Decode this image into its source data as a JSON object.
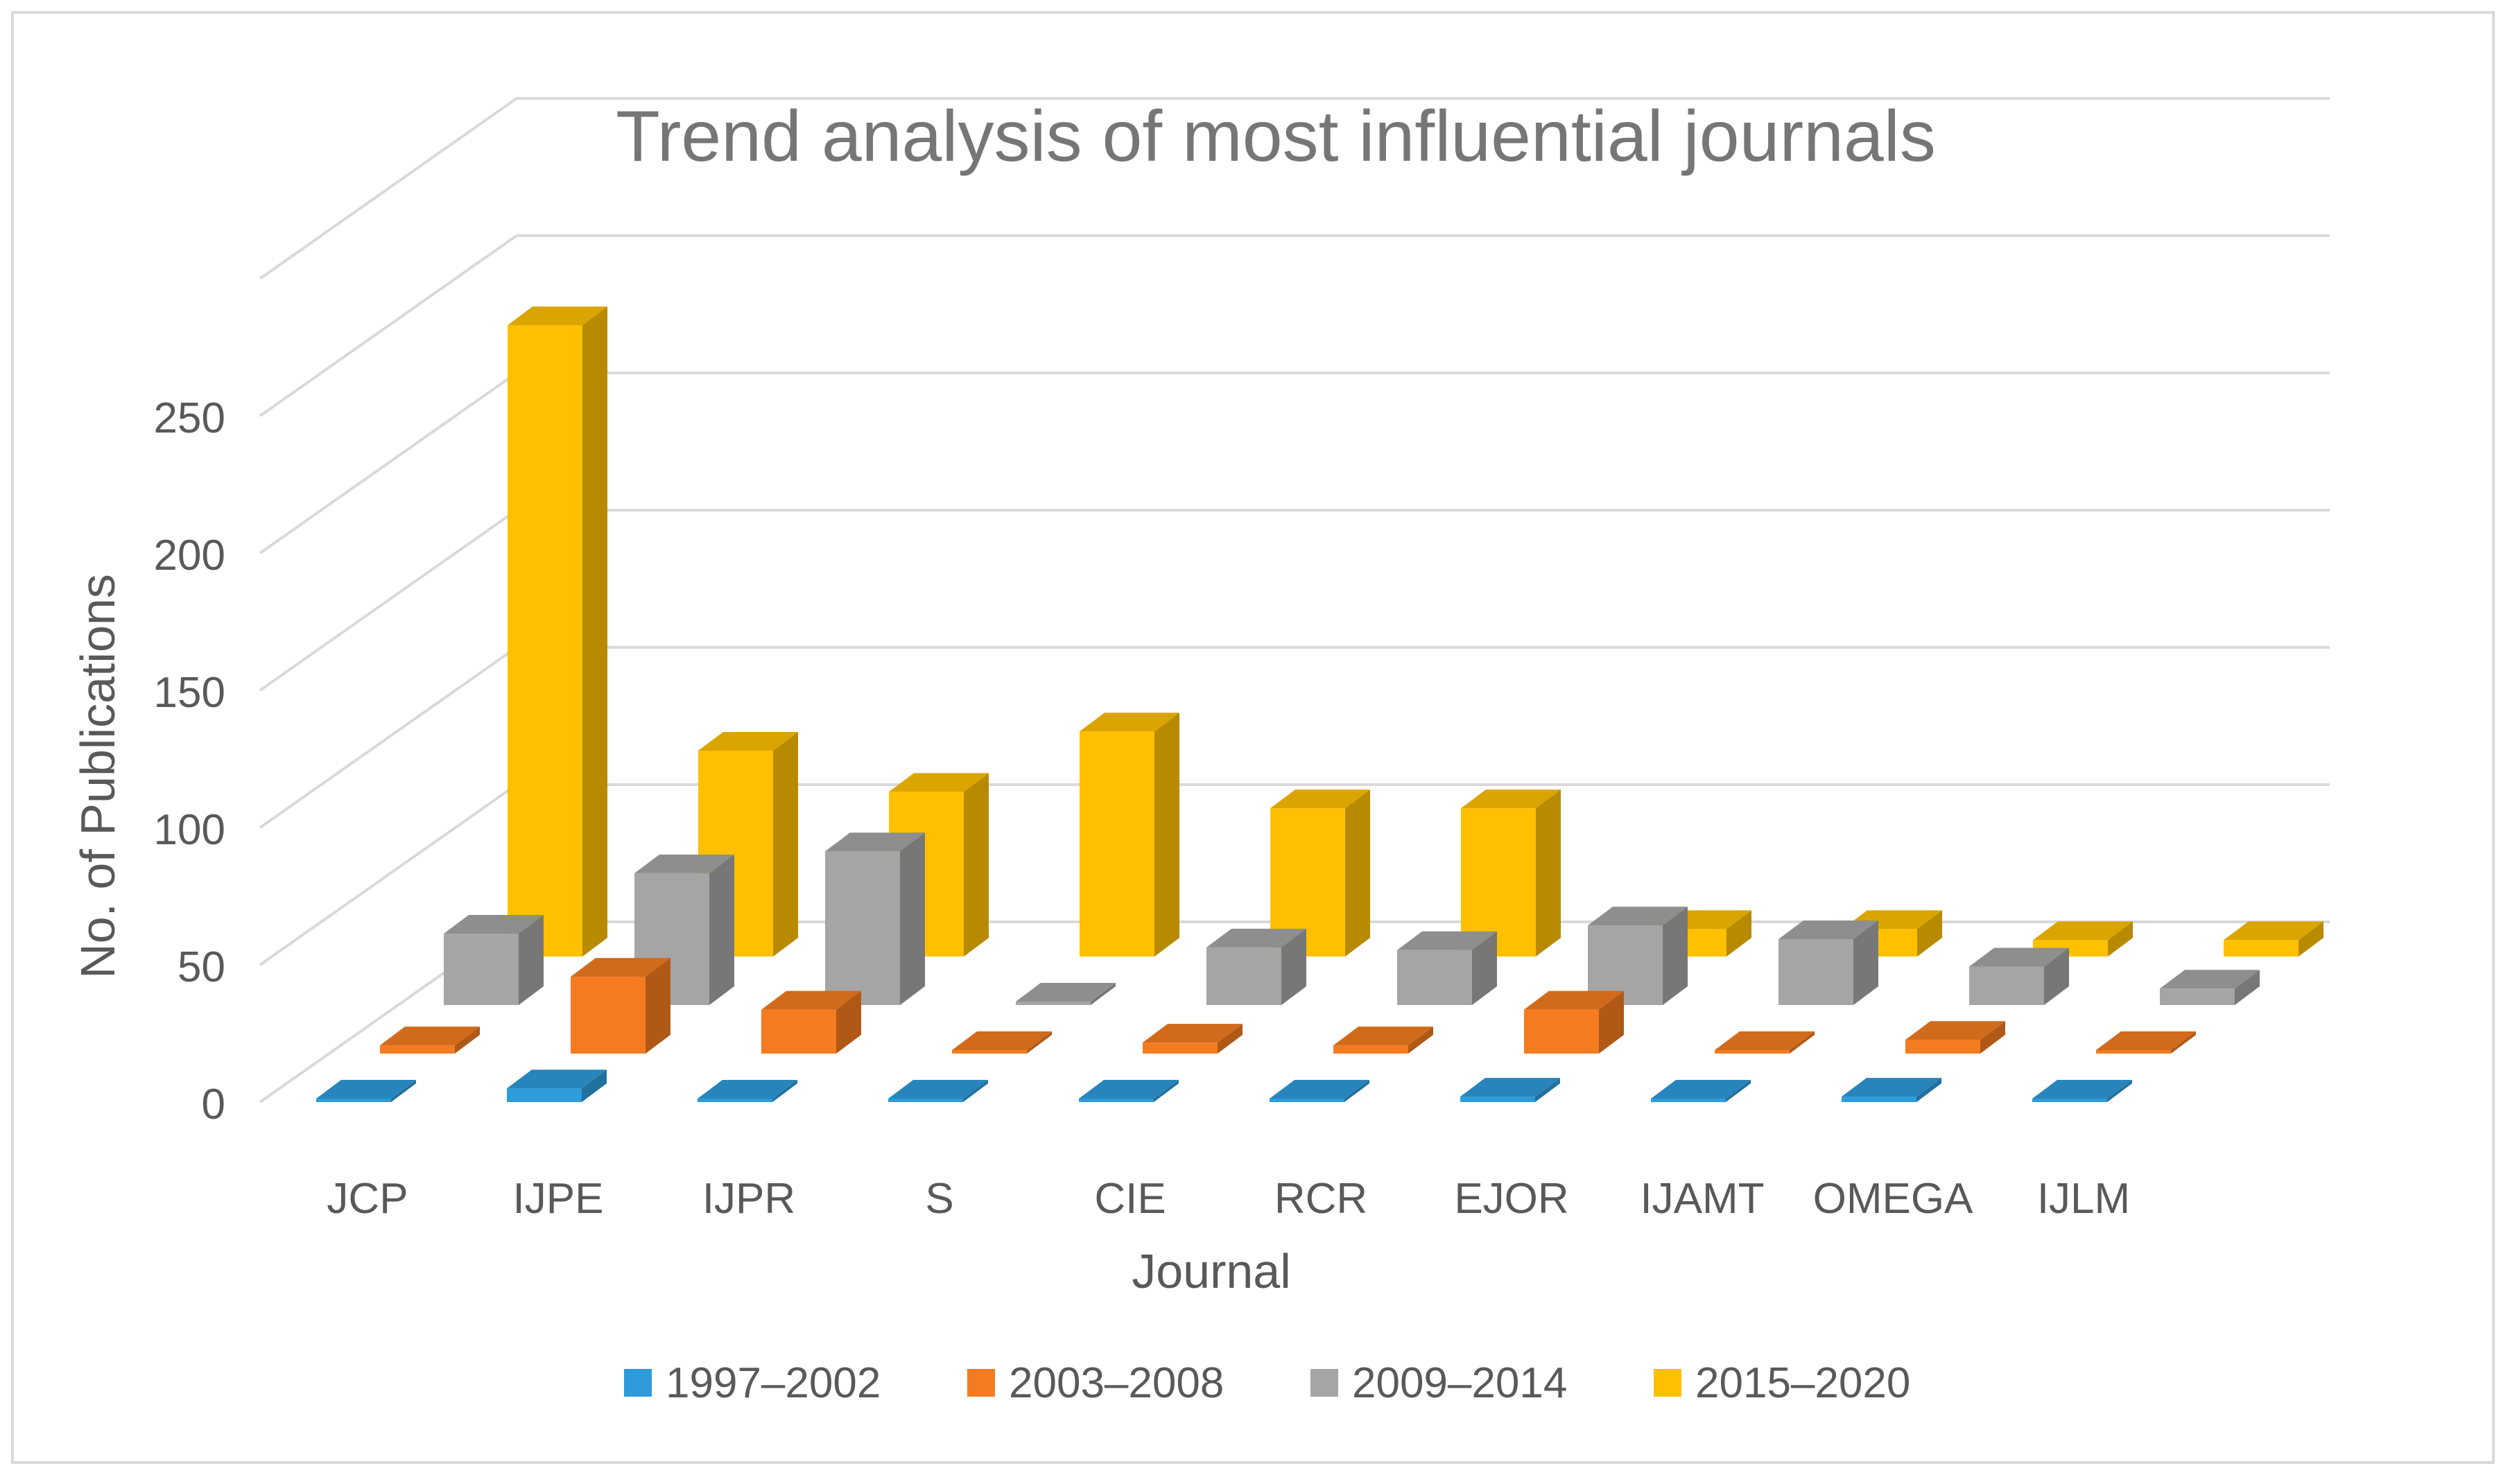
{
  "chart_data": {
    "type": "bar",
    "subtype": "3d-clustered-depth",
    "title": "Trend analysis of most influential journals",
    "xlabel": "Journal",
    "ylabel": "No. of Publications",
    "ylim": [
      0,
      300
    ],
    "yticks": [
      "0",
      "50",
      "100",
      "150",
      "200",
      "250"
    ],
    "ytick_values": [
      0,
      50,
      100,
      150,
      200,
      250
    ],
    "grid": true,
    "legend_position": "bottom",
    "categories": [
      "JCP",
      "IJPE",
      "IJPR",
      "S",
      "CIE",
      "RCR",
      "EJOR",
      "IJAMT",
      "OMEGA",
      "IJLM"
    ],
    "series": [
      {
        "name": "1997–2002",
        "color": "#2e9bdb",
        "values": [
          0,
          5,
          1,
          0,
          1,
          1,
          2,
          0,
          2,
          0
        ]
      },
      {
        "name": "2003–2008",
        "color": "#f47b20",
        "values": [
          3,
          28,
          16,
          1,
          4,
          3,
          16,
          1,
          5,
          0
        ]
      },
      {
        "name": "2009–2014",
        "color": "#a5a5a5",
        "values": [
          26,
          48,
          56,
          1,
          21,
          20,
          29,
          24,
          14,
          6
        ]
      },
      {
        "name": "2015–2020",
        "color": "#ffc000",
        "values": [
          230,
          75,
          60,
          82,
          54,
          54,
          10,
          10,
          6,
          6
        ]
      }
    ]
  }
}
